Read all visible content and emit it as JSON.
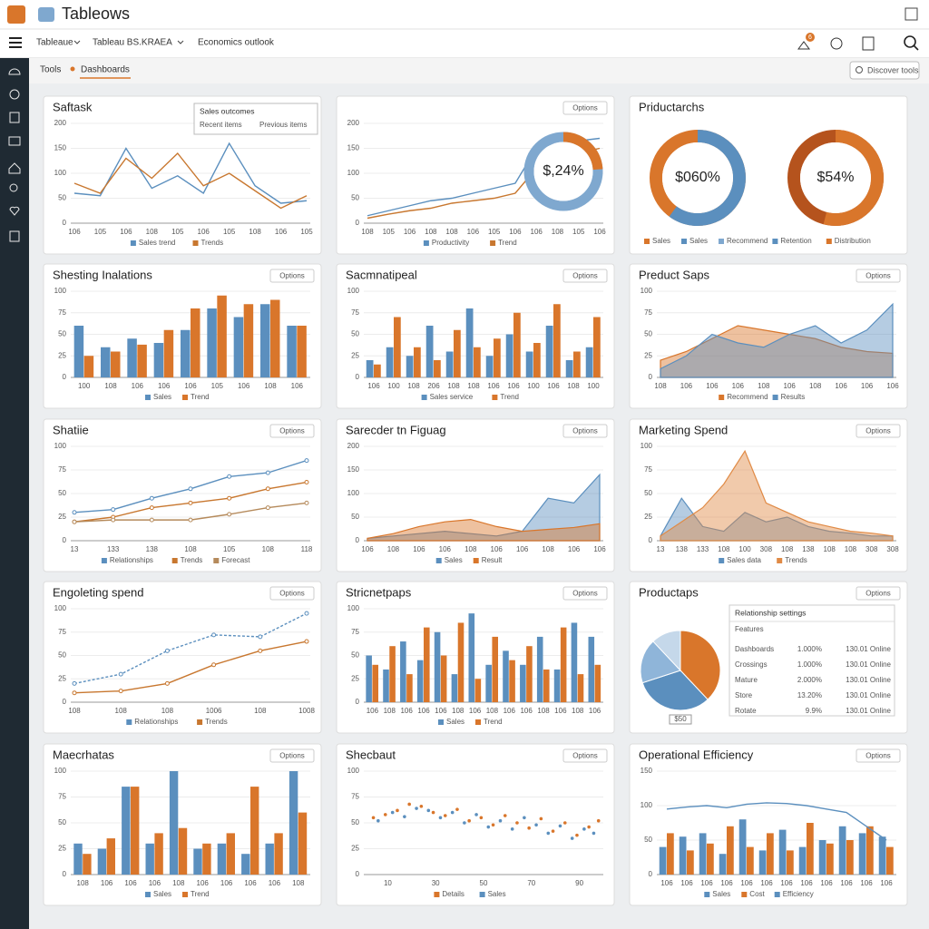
{
  "header": {
    "title": "Tableows",
    "nav": [
      "Tableaue",
      "Tableau BS.KRAEA",
      "Economics outlook"
    ],
    "badge": "6"
  },
  "breadcrumb": [
    "Tools",
    "Dashboards"
  ],
  "search": "Discover tools",
  "panels": [
    {
      "title": "Saftask",
      "chart": {
        "type": "line",
        "categories": [
          "106",
          "105",
          "106",
          "108",
          "105",
          "106",
          "105",
          "108",
          "106",
          "105"
        ],
        "ylim": [
          0,
          200
        ],
        "yticks": [
          0,
          50,
          100,
          150,
          200
        ],
        "series": [
          {
            "name": "Sales trend",
            "color": "#5b8fbe",
            "values": [
              60,
              55,
              150,
              70,
              95,
              60,
              160,
              75,
              40,
              45
            ]
          },
          {
            "name": "Trends",
            "color": "#c8772f",
            "values": [
              80,
              60,
              130,
              90,
              140,
              75,
              100,
              65,
              30,
              55
            ]
          }
        ],
        "tooltip": {
          "title": "Sales outcomes",
          "lines": [
            "Recent items",
            "Previous items"
          ]
        }
      }
    },
    {
      "button": "Options",
      "chart": {
        "type": "line",
        "categories": [
          "108",
          "105",
          "106",
          "108",
          "108",
          "106",
          "105",
          "106",
          "106",
          "108",
          "105",
          "106"
        ],
        "ylim": [
          0,
          200
        ],
        "yticks": [
          0,
          50,
          100,
          150,
          200
        ],
        "series": [
          {
            "name": "Productivity",
            "color": "#5b8fbe",
            "values": [
              15,
              25,
              35,
              45,
              50,
              60,
              70,
              80,
              150,
              160,
              165,
              170
            ]
          },
          {
            "name": "Trend",
            "color": "#c8772f",
            "values": [
              10,
              18,
              25,
              30,
              40,
              45,
              50,
              60,
              110,
              130,
              140,
              150
            ]
          }
        ],
        "donut": {
          "value": 24,
          "label": "$,24%",
          "color": "#d9762b",
          "track": "#7fa8cf"
        }
      }
    },
    {
      "title": "Priductarchs",
      "chart": {
        "type": "donuts",
        "donuts": [
          {
            "value": 60,
            "label": "$060%",
            "color": "#5b8fbe",
            "track": "#d9762b"
          },
          {
            "value": 54,
            "label": "$54%",
            "color": "#d9762b",
            "track": "#b5531d"
          }
        ],
        "legend": [
          {
            "name": "Sales",
            "color": "#d9762b"
          },
          {
            "name": "Sales",
            "color": "#5b8fbe"
          },
          {
            "name": "Recommend",
            "color": "#7fa8cf"
          },
          {
            "name": "Retention",
            "color": "#5b8fbe"
          },
          {
            "name": "Distribution",
            "color": "#d9762b"
          }
        ]
      }
    },
    {
      "title": "Shesting Inalations",
      "button": "Options",
      "chart": {
        "type": "bar",
        "categories": [
          "100",
          "108",
          "106",
          "106",
          "106",
          "105",
          "106",
          "108",
          "106"
        ],
        "ylim": [
          0,
          100
        ],
        "yticks": [
          0,
          25,
          50,
          75,
          100
        ],
        "series": [
          {
            "name": "Sales",
            "color": "#5b8fbe",
            "values": [
              60,
              35,
              45,
              40,
              55,
              80,
              70,
              85,
              60
            ]
          },
          {
            "name": "Trend",
            "color": "#d9762b",
            "values": [
              25,
              30,
              38,
              55,
              80,
              95,
              85,
              90,
              60
            ]
          }
        ]
      }
    },
    {
      "title": "Sacmnatipeal",
      "button": "Options",
      "chart": {
        "type": "bar",
        "categories": [
          "106",
          "100",
          "108",
          "206",
          "108",
          "108",
          "106",
          "106",
          "100",
          "106",
          "108",
          "100"
        ],
        "ylim": [
          0,
          100
        ],
        "yticks": [
          0,
          25,
          50,
          75,
          100
        ],
        "series": [
          {
            "name": "Sales service",
            "color": "#5b8fbe",
            "values": [
              20,
              35,
              25,
              60,
              30,
              80,
              25,
              50,
              30,
              60,
              20,
              35
            ]
          },
          {
            "name": "Trend",
            "color": "#d9762b",
            "values": [
              15,
              70,
              35,
              20,
              55,
              35,
              45,
              75,
              40,
              85,
              30,
              70
            ]
          }
        ]
      }
    },
    {
      "title": "Preduct Saps",
      "button": "Options",
      "chart": {
        "type": "area",
        "categories": [
          "108",
          "106",
          "106",
          "106",
          "108",
          "106",
          "108",
          "106",
          "106",
          "106"
        ],
        "ylim": [
          0,
          100
        ],
        "yticks": [
          0,
          25,
          50,
          75,
          100
        ],
        "series": [
          {
            "name": "Recommend",
            "color": "#d9762b",
            "values": [
              20,
              30,
              45,
              60,
              55,
              50,
              45,
              35,
              30,
              28
            ]
          },
          {
            "name": "Results",
            "color": "#5b8fbe",
            "values": [
              10,
              25,
              50,
              40,
              35,
              50,
              60,
              40,
              55,
              85
            ]
          }
        ]
      }
    },
    {
      "title": "Shatiie",
      "button": "Options",
      "chart": {
        "type": "line",
        "markers": true,
        "categories": [
          "13",
          "133",
          "138",
          "108",
          "105",
          "108",
          "118"
        ],
        "ylim": [
          0,
          100
        ],
        "yticks": [
          0,
          25,
          50,
          75,
          100
        ],
        "series": [
          {
            "name": "Relationships",
            "color": "#5b8fbe",
            "values": [
              30,
              33,
              45,
              55,
              68,
              72,
              85
            ]
          },
          {
            "name": "Trends",
            "color": "#c8772f",
            "values": [
              20,
              25,
              35,
              40,
              45,
              55,
              62
            ]
          },
          {
            "name": "Forecast",
            "color": "#b58a5b",
            "values": [
              20,
              22,
              22,
              22,
              28,
              35,
              40
            ]
          }
        ]
      }
    },
    {
      "title": "Sarecder tn Figuag",
      "button": "Options",
      "chart": {
        "type": "area",
        "categories": [
          "106",
          "108",
          "106",
          "106",
          "108",
          "106",
          "106",
          "108",
          "106",
          "106"
        ],
        "ylim": [
          0,
          200
        ],
        "yticks": [
          0,
          50,
          100,
          150,
          200
        ],
        "series": [
          {
            "name": "Sales",
            "color": "#5b8fbe",
            "values": [
              5,
              10,
              15,
              20,
              15,
              10,
              20,
              90,
              80,
              140
            ]
          },
          {
            "name": "Result",
            "color": "#d9762b",
            "values": [
              5,
              15,
              30,
              40,
              45,
              30,
              20,
              24,
              28,
              36
            ]
          }
        ]
      }
    },
    {
      "title": "Marketing Spend",
      "button": "Options",
      "chart": {
        "type": "area",
        "categories": [
          "13",
          "138",
          "133",
          "108",
          "100",
          "308",
          "108",
          "138",
          "108",
          "108",
          "308",
          "308"
        ],
        "ylim": [
          0,
          100
        ],
        "yticks": [
          0,
          25,
          50,
          75,
          100
        ],
        "series": [
          {
            "name": "Sales data",
            "color": "#5b8fbe",
            "values": [
              5,
              45,
              15,
              10,
              30,
              20,
              25,
              15,
              10,
              8,
              5,
              5
            ]
          },
          {
            "name": "Trends",
            "color": "#e08a45",
            "values": [
              5,
              20,
              35,
              60,
              95,
              40,
              30,
              20,
              15,
              10,
              8,
              5
            ]
          }
        ]
      }
    },
    {
      "title": "Engoleting spend",
      "button": "Options",
      "chart": {
        "type": "line",
        "markers": true,
        "categories": [
          "108",
          "108",
          "108",
          "1006",
          "108",
          "1008"
        ],
        "ylim": [
          0,
          100
        ],
        "yticks": [
          0,
          25,
          50,
          75,
          100
        ],
        "series": [
          {
            "name": "Relationships",
            "color": "#5b8fbe",
            "dashed": true,
            "values": [
              20,
              30,
              55,
              72,
              70,
              95
            ]
          },
          {
            "name": "Trends",
            "color": "#c8772f",
            "values": [
              10,
              12,
              20,
              40,
              55,
              65
            ]
          }
        ]
      }
    },
    {
      "title": "Stricnetpaps",
      "button": "Options",
      "chart": {
        "type": "bar",
        "categories": [
          "106",
          "108",
          "106",
          "106",
          "106",
          "108",
          "106",
          "108",
          "106",
          "106",
          "108",
          "106",
          "108",
          "106"
        ],
        "ylim": [
          0,
          100
        ],
        "yticks": [
          0,
          25,
          50,
          75,
          100
        ],
        "series": [
          {
            "name": "Sales",
            "color": "#5b8fbe",
            "values": [
              50,
              35,
              65,
              45,
              75,
              30,
              95,
              40,
              55,
              40,
              70,
              35,
              85,
              70
            ]
          },
          {
            "name": "Trend",
            "color": "#d9762b",
            "values": [
              40,
              60,
              30,
              80,
              50,
              85,
              25,
              70,
              45,
              60,
              35,
              80,
              30,
              40
            ]
          }
        ]
      }
    },
    {
      "title": "Productaps",
      "button": "Options",
      "chart": {
        "type": "pie",
        "caption": "$50",
        "values": [
          38,
          32,
          18,
          12
        ],
        "colors": [
          "#d9762b",
          "#5b8fbe",
          "#8fb5d9",
          "#c5d8ea"
        ],
        "table": {
          "title": "Relationship settings",
          "header": "Features",
          "rows": [
            [
              "Dashboards",
              "1.000%",
              "130.01 Online"
            ],
            [
              "Crossings",
              "1.000%",
              "130.01 Online"
            ],
            [
              "Mature",
              "2.000%",
              "130.01 Online"
            ],
            [
              "Store",
              "13.20%",
              "130.01 Online"
            ],
            [
              "Rotate",
              "9.9%",
              "130.01 Online"
            ]
          ]
        }
      }
    },
    {
      "title": "Maecrhatas",
      "button": "Options",
      "chart": {
        "type": "bar",
        "categories": [
          "108",
          "106",
          "106",
          "106",
          "108",
          "106",
          "106",
          "106",
          "106",
          "108"
        ],
        "ylim": [
          0,
          100
        ],
        "yticks": [
          0,
          25,
          50,
          75,
          100
        ],
        "series": [
          {
            "name": "Sales",
            "color": "#5b8fbe",
            "values": [
              30,
              25,
              85,
              30,
              100,
              25,
              30,
              20,
              30,
              100
            ]
          },
          {
            "name": "Trend",
            "color": "#d9762b",
            "values": [
              20,
              35,
              85,
              40,
              45,
              30,
              40,
              85,
              40,
              60
            ]
          }
        ]
      }
    },
    {
      "title": "Shecbaut",
      "button": "Options",
      "chart": {
        "type": "scatter",
        "xlim": [
          0,
          100
        ],
        "xticks": [
          10,
          30,
          50,
          70,
          90
        ],
        "ylim": [
          0,
          100
        ],
        "yticks": [
          0,
          25,
          50,
          75,
          100
        ],
        "series": [
          {
            "name": "Details",
            "color": "#d9762b",
            "x": [
              4,
              9,
              14,
              19,
              24,
              29,
              34,
              39,
              44,
              49,
              54,
              59,
              64,
              69,
              74,
              79,
              84,
              89,
              94,
              98
            ],
            "y": [
              55,
              58,
              62,
              68,
              66,
              60,
              57,
              63,
              52,
              55,
              48,
              57,
              50,
              45,
              54,
              42,
              50,
              38,
              46,
              52
            ]
          },
          {
            "name": "Sales",
            "color": "#5b8fbe",
            "x": [
              6,
              12,
              17,
              22,
              27,
              32,
              37,
              42,
              47,
              52,
              57,
              62,
              67,
              72,
              77,
              82,
              87,
              92,
              96
            ],
            "y": [
              52,
              60,
              56,
              64,
              62,
              55,
              60,
              50,
              58,
              46,
              52,
              44,
              55,
              48,
              40,
              47,
              35,
              44,
              40
            ]
          }
        ]
      }
    },
    {
      "title": "Operational Efficiency",
      "button": "Options",
      "chart": {
        "type": "bar",
        "categories": [
          "106",
          "106",
          "106",
          "106",
          "106",
          "106",
          "106",
          "106",
          "106",
          "106",
          "106",
          "106"
        ],
        "ylim": [
          0,
          150
        ],
        "yticks": [
          0,
          50,
          100,
          150
        ],
        "series": [
          {
            "name": "Sales",
            "color": "#5b8fbe",
            "values": [
              40,
              55,
              60,
              30,
              80,
              35,
              65,
              40,
              50,
              70,
              60,
              55
            ]
          },
          {
            "name": "Cost",
            "color": "#d9762b",
            "values": [
              60,
              35,
              45,
              70,
              40,
              60,
              35,
              75,
              45,
              50,
              70,
              40
            ]
          },
          {
            "name": "Efficiency",
            "color": "#5b8fbe",
            "kind": "line",
            "values": [
              95,
              98,
              100,
              97,
              102,
              104,
              103,
              100,
              95,
              90,
              70,
              50
            ]
          }
        ]
      }
    }
  ]
}
